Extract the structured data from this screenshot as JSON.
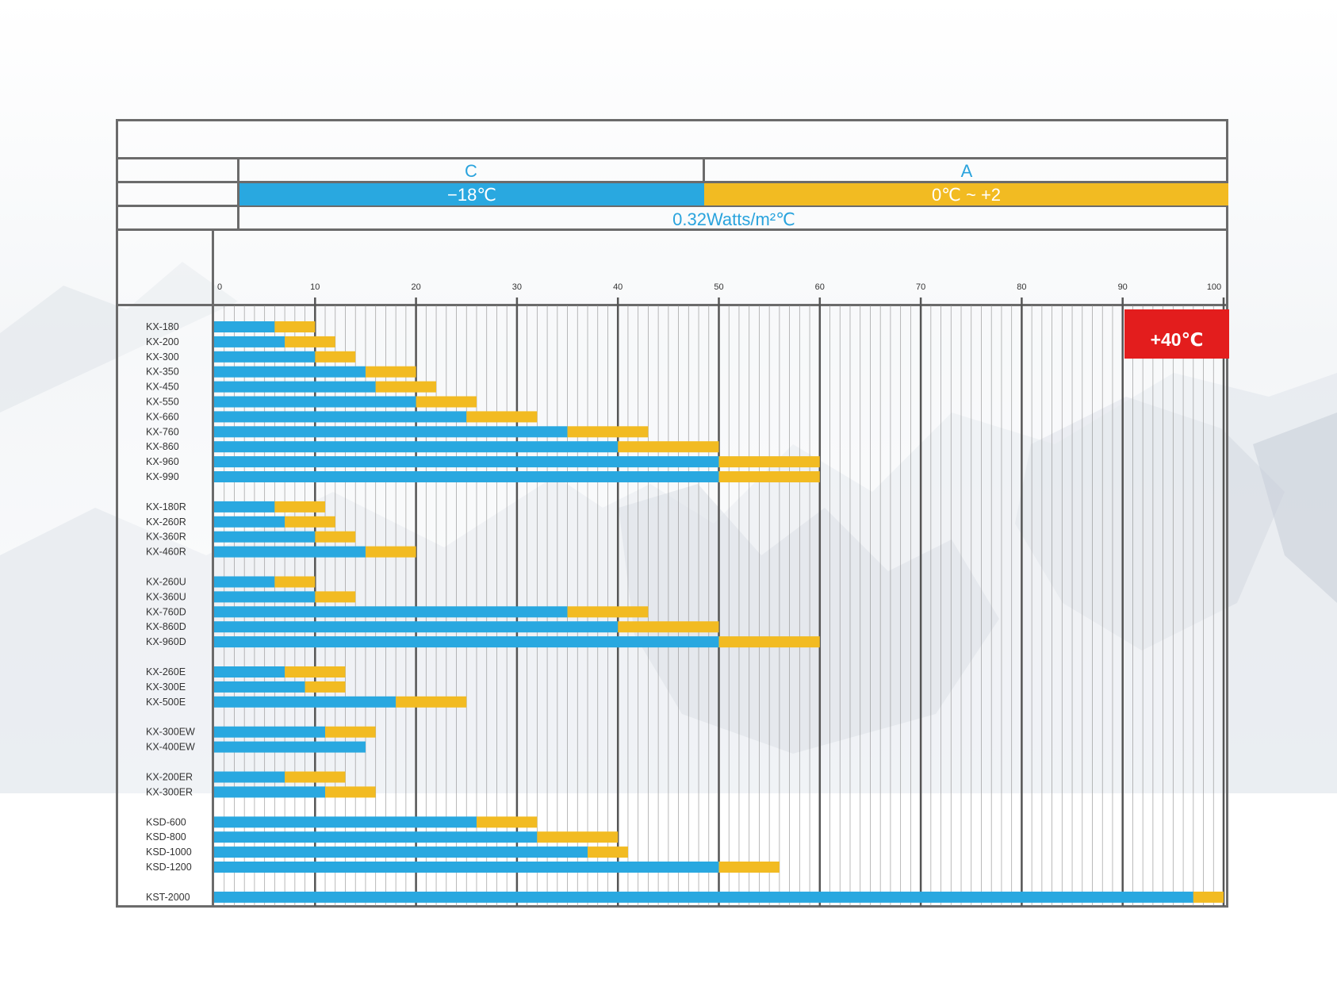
{
  "header": {
    "category_c": "C",
    "category_a": "A",
    "temp_c": "−18℃",
    "temp_a": "0℃ ~ +2",
    "insulation": "0.32Watts/m²℃",
    "ambient": "+40℃"
  },
  "colors": {
    "blue": "#29a8e0",
    "orange": "#f2bb22",
    "red": "#e31d1d",
    "grid_major": "#555555",
    "grid_minor": "#8c8c8c"
  },
  "chart_data": {
    "type": "bar",
    "orientation": "horizontal",
    "stacked": true,
    "xlim": [
      0,
      100
    ],
    "x_ticks": [
      0,
      10,
      20,
      30,
      40,
      50,
      60,
      70,
      80,
      90,
      100
    ],
    "grid": true,
    "groups": [
      {
        "rows": [
          {
            "label": "KX-180",
            "c": 6,
            "a": 10
          },
          {
            "label": "KX-200",
            "c": 7,
            "a": 12
          },
          {
            "label": "KX-300",
            "c": 10,
            "a": 14
          },
          {
            "label": "KX-350",
            "c": 15,
            "a": 20
          },
          {
            "label": "KX-450",
            "c": 16,
            "a": 22
          },
          {
            "label": "KX-550",
            "c": 20,
            "a": 26
          },
          {
            "label": "KX-660",
            "c": 25,
            "a": 32
          },
          {
            "label": "KX-760",
            "c": 35,
            "a": 43
          },
          {
            "label": "KX-860",
            "c": 40,
            "a": 50
          },
          {
            "label": "KX-960",
            "c": 50,
            "a": 60
          },
          {
            "label": "KX-990",
            "c": 50,
            "a": 60
          }
        ]
      },
      {
        "rows": [
          {
            "label": "KX-180R",
            "c": 6,
            "a": 11
          },
          {
            "label": "KX-260R",
            "c": 7,
            "a": 12
          },
          {
            "label": "KX-360R",
            "c": 10,
            "a": 14
          },
          {
            "label": "KX-460R",
            "c": 15,
            "a": 20
          }
        ]
      },
      {
        "rows": [
          {
            "label": "KX-260U",
            "c": 6,
            "a": 10
          },
          {
            "label": "KX-360U",
            "c": 10,
            "a": 14
          },
          {
            "label": "KX-760D",
            "c": 35,
            "a": 43
          },
          {
            "label": "KX-860D",
            "c": 40,
            "a": 50
          },
          {
            "label": "KX-960D",
            "c": 50,
            "a": 60
          }
        ]
      },
      {
        "rows": [
          {
            "label": "KX-260E",
            "c": 7,
            "a": 13
          },
          {
            "label": "KX-300E",
            "c": 9,
            "a": 13
          },
          {
            "label": "KX-500E",
            "c": 18,
            "a": 25
          }
        ]
      },
      {
        "rows": [
          {
            "label": "KX-300EW",
            "c": 11,
            "a": 16
          },
          {
            "label": "KX-400EW",
            "c": 15,
            "a": 15
          }
        ]
      },
      {
        "rows": [
          {
            "label": "KX-200ER",
            "c": 7,
            "a": 13
          },
          {
            "label": "KX-300ER",
            "c": 11,
            "a": 16
          }
        ]
      },
      {
        "rows": [
          {
            "label": "KSD-600",
            "c": 26,
            "a": 32
          },
          {
            "label": "KSD-800",
            "c": 32,
            "a": 40
          },
          {
            "label": "KSD-1000",
            "c": 37,
            "a": 41
          },
          {
            "label": "KSD-1200",
            "c": 50,
            "a": 56
          }
        ]
      },
      {
        "rows": [
          {
            "label": "KST-2000",
            "c": 97,
            "a": 100
          }
        ]
      }
    ]
  }
}
